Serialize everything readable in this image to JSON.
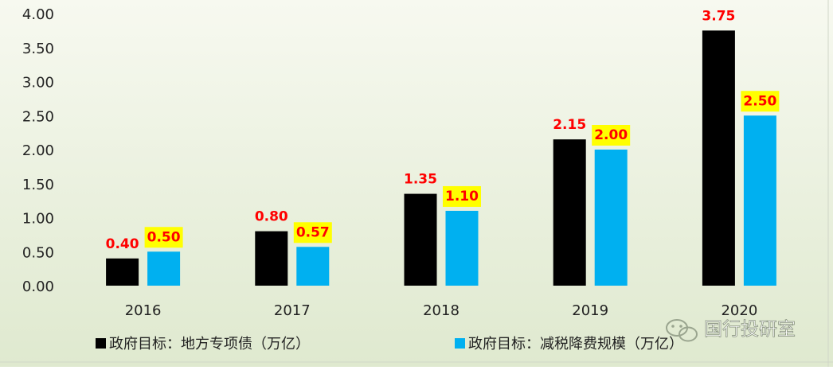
{
  "chart_data": {
    "type": "bar",
    "categories": [
      "2016",
      "2017",
      "2018",
      "2019",
      "2020"
    ],
    "series": [
      {
        "name": "政府目标：地方专项债（万亿）",
        "values": [
          0.4,
          0.8,
          1.35,
          2.15,
          3.75
        ],
        "color": "#000000",
        "label_color": "#ff0000",
        "label_highlight": ""
      },
      {
        "name": "政府目标：减税降费规模（万亿）",
        "values": [
          0.5,
          0.57,
          1.1,
          2.0,
          2.5
        ],
        "color": "#00b0f0",
        "label_color": "#ff0000",
        "label_highlight": "#ffff00"
      }
    ],
    "data_labels": [
      [
        "0.40",
        "0.80",
        "1.35",
        "2.15",
        "3.75"
      ],
      [
        "0.50",
        "0.57",
        "1.10",
        "2.00",
        "2.50"
      ]
    ],
    "y_tick_labels": [
      "0.00",
      "0.50",
      "1.00",
      "1.50",
      "2.00",
      "2.50",
      "3.00",
      "3.50",
      "4.00"
    ],
    "ylim": [
      0,
      4
    ],
    "grid": false,
    "legend_position": "bottom",
    "title": "",
    "xlabel": "",
    "ylabel": "",
    "background": "#e4ecd8"
  },
  "watermark": {
    "text": "国行投研室",
    "icon": "wechat-icon"
  }
}
